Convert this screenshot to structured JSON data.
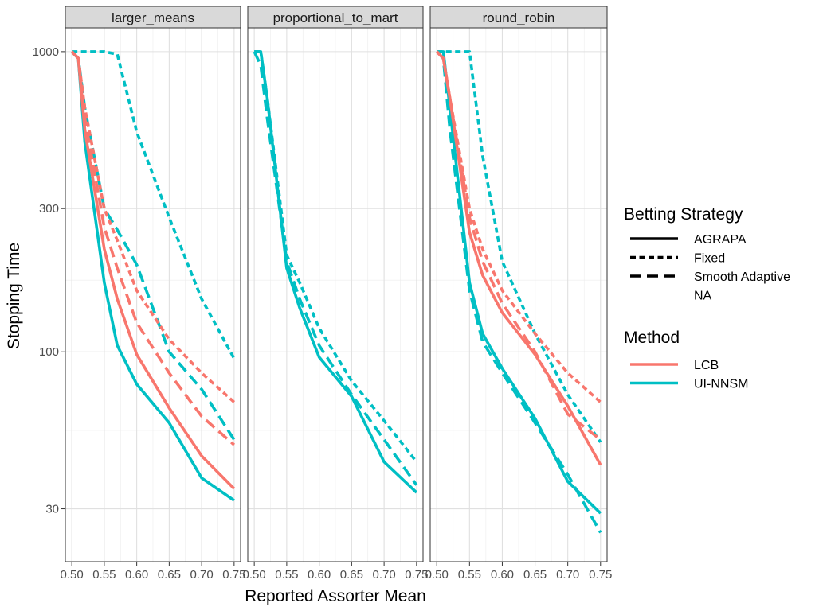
{
  "chart_data": {
    "type": "line",
    "xlabel": "Reported Assorter Mean",
    "ylabel": "Stopping Time",
    "y_scale": "log10",
    "ylim": [
      20,
      1200
    ],
    "xlim": [
      0.49,
      0.76
    ],
    "x_ticks": [
      0.5,
      0.55,
      0.6,
      0.65,
      0.7,
      0.75
    ],
    "x_tick_labels": [
      "0.50",
      "0.55",
      "0.60",
      "0.65",
      "0.70",
      "0.75"
    ],
    "y_ticks": [
      30,
      100,
      300,
      1000
    ],
    "y_tick_labels": [
      "30",
      "100",
      "300",
      "1000"
    ],
    "grid": true,
    "legend_position": "right",
    "legends": [
      {
        "title": "Betting Strategy",
        "entries": [
          {
            "label": "AGRAPA",
            "linetype": "solid"
          },
          {
            "label": "Fixed",
            "linetype": "dotted"
          },
          {
            "label": "Smooth Adaptive",
            "linetype": "dashed"
          },
          {
            "label": "NA",
            "linetype": "none"
          }
        ]
      },
      {
        "title": "Method",
        "entries": [
          {
            "label": "LCB",
            "color": "#F8766D"
          },
          {
            "label": "UI-NNSM",
            "color": "#00BFC4"
          }
        ]
      }
    ],
    "colors": {
      "LCB": "#F8766D",
      "UI-NNSM": "#00BFC4"
    },
    "x": [
      0.5,
      0.51,
      0.52,
      0.55,
      0.57,
      0.6,
      0.65,
      0.7,
      0.75
    ],
    "panels": [
      {
        "title": "larger_means",
        "series": [
          {
            "method": "UI-NNSM",
            "strategy": "AGRAPA",
            "y": [
              1000,
              950,
              500,
              170,
              105,
              78,
              58,
              38,
              32
            ]
          },
          {
            "method": "UI-NNSM",
            "strategy": "Fixed",
            "y": [
              1000,
              1000,
              1000,
              1000,
              980,
              540,
              280,
              150,
              95
            ]
          },
          {
            "method": "UI-NNSM",
            "strategy": "Smooth Adaptive",
            "y": [
              1000,
              950,
              650,
              300,
              255,
              195,
              100,
              75,
              51
            ]
          },
          {
            "method": "LCB",
            "strategy": "AGRAPA",
            "y": [
              1000,
              950,
              550,
              220,
              150,
              98,
              65,
              45,
              35
            ]
          },
          {
            "method": "LCB",
            "strategy": "Fixed",
            "y": [
              1000,
              950,
              650,
              300,
              235,
              160,
              110,
              85,
              68
            ]
          },
          {
            "method": "LCB",
            "strategy": "Smooth Adaptive",
            "y": [
              1000,
              950,
              600,
              260,
              190,
              125,
              85,
              61,
              49
            ]
          }
        ]
      },
      {
        "title": "proportional_to_mart",
        "series": [
          {
            "method": "UI-NNSM",
            "strategy": "AGRAPA",
            "y": [
              1000,
              1000,
              700,
              190,
              140,
              96,
              71,
              43,
              34
            ]
          },
          {
            "method": "UI-NNSM",
            "strategy": "Fixed",
            "y": [
              1000,
              1000,
              700,
              210,
              170,
              120,
              80,
              59,
              43
            ]
          },
          {
            "method": "UI-NNSM",
            "strategy": "Smooth Adaptive",
            "y": [
              1000,
              900,
              600,
              200,
              150,
              105,
              72,
              51,
              36
            ]
          }
        ]
      },
      {
        "title": "round_robin",
        "series": [
          {
            "method": "UI-NNSM",
            "strategy": "AGRAPA",
            "y": [
              1000,
              1000,
              650,
              170,
              115,
              88,
              60,
              37,
              29
            ]
          },
          {
            "method": "UI-NNSM",
            "strategy": "Fixed",
            "y": [
              1000,
              1000,
              1000,
              1000,
              450,
              200,
              115,
              72,
              50
            ]
          },
          {
            "method": "UI-NNSM",
            "strategy": "Smooth Adaptive",
            "y": [
              1000,
              950,
              550,
              160,
              108,
              85,
              58,
              39,
              25
            ]
          },
          {
            "method": "LCB",
            "strategy": "AGRAPA",
            "y": [
              1000,
              950,
              700,
              250,
              180,
              135,
              98,
              66,
              42
            ]
          },
          {
            "method": "LCB",
            "strategy": "Fixed",
            "y": [
              1000,
              950,
              700,
              300,
              220,
              160,
              115,
              85,
              68
            ]
          },
          {
            "method": "LCB",
            "strategy": "Smooth Adaptive",
            "y": [
              1000,
              950,
              700,
              280,
              200,
              145,
              100,
              62,
              51
            ]
          }
        ]
      }
    ]
  }
}
